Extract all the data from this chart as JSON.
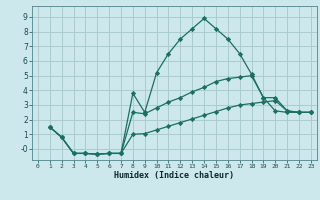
{
  "xlabel": "Humidex (Indice chaleur)",
  "background_color": "#cce8ec",
  "grid_color": "#aacccc",
  "line_color": "#1a7060",
  "xlim": [
    -0.5,
    23.5
  ],
  "ylim": [
    -0.75,
    9.75
  ],
  "xticks": [
    0,
    1,
    2,
    3,
    4,
    5,
    6,
    7,
    8,
    9,
    10,
    11,
    12,
    13,
    14,
    15,
    16,
    17,
    18,
    19,
    20,
    21,
    22,
    23
  ],
  "yticks": [
    0,
    1,
    2,
    3,
    4,
    5,
    6,
    7,
    8,
    9
  ],
  "ytick_labels": [
    "-0",
    "1",
    "2",
    "3",
    "4",
    "5",
    "6",
    "7",
    "8",
    "9"
  ],
  "series1_x": [
    1,
    2,
    3,
    4,
    5,
    6,
    7,
    8,
    9,
    10,
    11,
    12,
    13,
    14,
    15,
    16,
    17,
    18,
    19,
    20,
    21,
    22,
    23
  ],
  "series1_y": [
    1.5,
    0.8,
    -0.3,
    -0.3,
    -0.35,
    -0.3,
    -0.3,
    3.8,
    2.5,
    5.2,
    6.5,
    7.5,
    8.2,
    8.9,
    8.2,
    7.5,
    6.5,
    5.1,
    3.5,
    2.6,
    2.5,
    2.5,
    2.5
  ],
  "series2_x": [
    1,
    2,
    3,
    4,
    5,
    6,
    7,
    8,
    9,
    10,
    11,
    12,
    13,
    14,
    15,
    16,
    17,
    18,
    19,
    20,
    21,
    22,
    23
  ],
  "series2_y": [
    1.5,
    0.8,
    -0.3,
    -0.3,
    -0.35,
    -0.3,
    -0.3,
    2.5,
    2.4,
    2.8,
    3.2,
    3.5,
    3.9,
    4.2,
    4.6,
    4.8,
    4.9,
    5.0,
    3.5,
    3.5,
    2.6,
    2.5,
    2.5
  ],
  "series3_x": [
    1,
    2,
    3,
    4,
    5,
    6,
    7,
    8,
    9,
    10,
    11,
    12,
    13,
    14,
    15,
    16,
    17,
    18,
    19,
    20,
    21,
    22,
    23
  ],
  "series3_y": [
    1.5,
    0.8,
    -0.3,
    -0.3,
    -0.35,
    -0.3,
    -0.3,
    1.0,
    1.05,
    1.3,
    1.55,
    1.8,
    2.05,
    2.3,
    2.55,
    2.8,
    3.0,
    3.1,
    3.2,
    3.3,
    2.6,
    2.5,
    2.5
  ]
}
